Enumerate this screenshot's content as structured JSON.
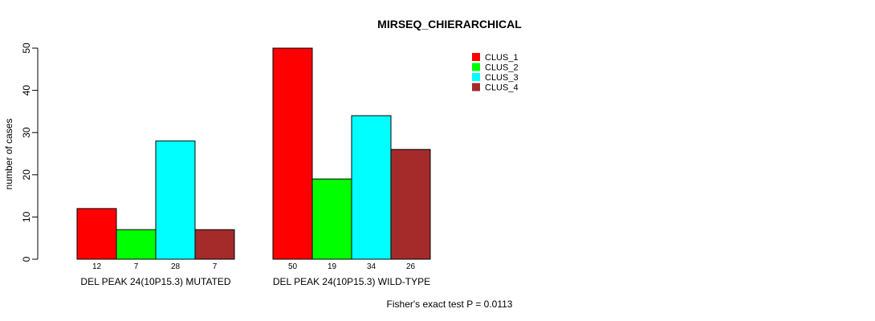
{
  "chart_data": {
    "type": "bar",
    "title": "MIRSEQ_CHIERARCHICAL",
    "ylabel": "number of cases",
    "xlabel": "",
    "ylim": [
      0,
      50
    ],
    "yticks": [
      0,
      10,
      20,
      30,
      40,
      50
    ],
    "groups": [
      "DEL PEAK 24(10P15.3) MUTATED",
      "DEL PEAK 24(10P15.3) WILD-TYPE"
    ],
    "series": [
      {
        "name": "CLUS_1",
        "color": "#ff0000",
        "values": [
          12,
          50
        ]
      },
      {
        "name": "CLUS_2",
        "color": "#00ff00",
        "values": [
          7,
          19
        ]
      },
      {
        "name": "CLUS_3",
        "color": "#00ffff",
        "values": [
          28,
          34
        ]
      },
      {
        "name": "CLUS_4",
        "color": "#a52a2a",
        "values": [
          7,
          26
        ]
      }
    ],
    "legend_position": "top-right",
    "footer": "Fisher's exact test P = 0.0113"
  }
}
